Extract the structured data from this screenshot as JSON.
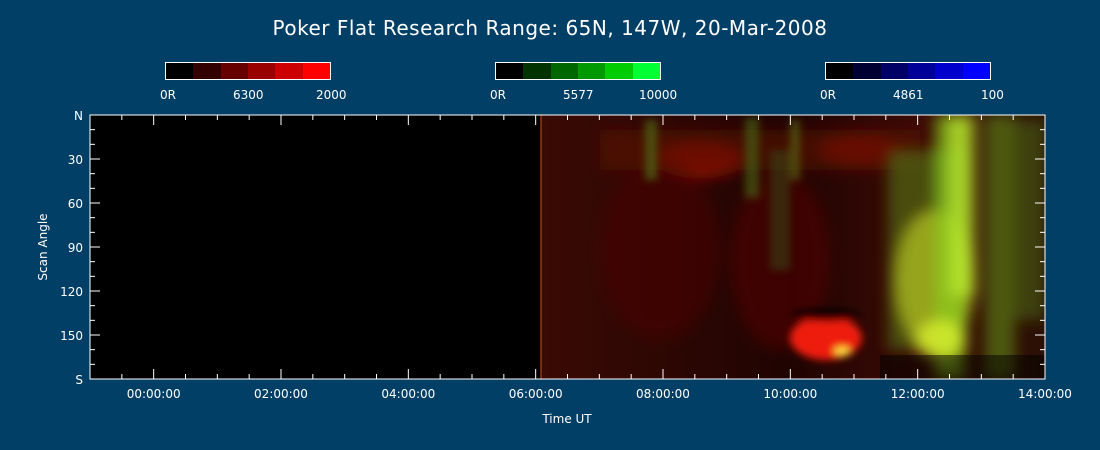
{
  "chart_data": {
    "type": "heatmap",
    "title": "Poker Flat Research Range: 65N, 147W, 20-Mar-2008",
    "xlabel": "Time UT",
    "ylabel": "Scan Angle",
    "x_ticks": [
      "00:00:00",
      "02:00:00",
      "04:00:00",
      "06:00:00",
      "08:00:00",
      "10:00:00",
      "12:00:00",
      "14:00:00"
    ],
    "x_tick_hours": [
      0,
      2,
      4,
      6,
      8,
      10,
      12,
      14
    ],
    "xlim_hours": [
      -1.0,
      14.0
    ],
    "y_ticks": [
      "N",
      "30",
      "60",
      "90",
      "120",
      "150",
      "S"
    ],
    "y_tick_values": [
      0,
      30,
      60,
      90,
      120,
      150,
      180
    ],
    "ylim": [
      0,
      180
    ],
    "data_start_hour": 5.85,
    "colorbars": [
      {
        "channel": "6300",
        "min_label": "0R",
        "max_label": "2000",
        "colors": [
          "#000000",
          "#330000",
          "#660000",
          "#990000",
          "#cc0000",
          "#ff0000"
        ]
      },
      {
        "channel": "5577",
        "min_label": "0R",
        "max_label": "10000",
        "colors": [
          "#000000",
          "#003300",
          "#006600",
          "#009900",
          "#00cc00",
          "#00ff33"
        ]
      },
      {
        "channel": "4861",
        "min_label": "0R",
        "max_label": "100",
        "colors": [
          "#000000",
          "#000033",
          "#000066",
          "#000099",
          "#0000cc",
          "#0000ff"
        ]
      }
    ]
  }
}
